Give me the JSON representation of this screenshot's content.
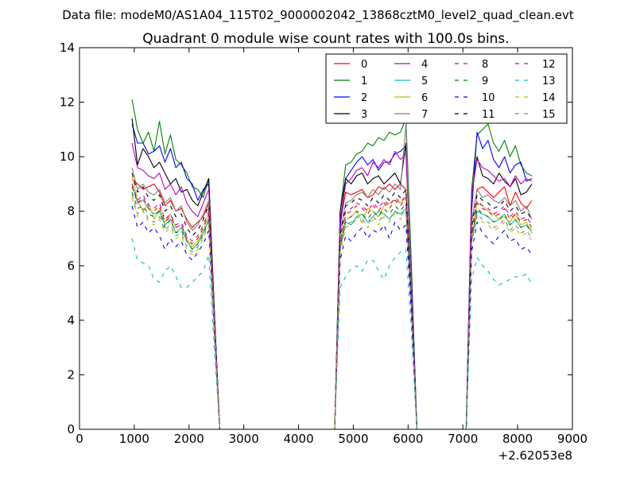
{
  "page": {
    "suptitle": "Data file: modeM0/AS1A04_115T02_9000002042_13868cztM0_level2_quad_clean.evt"
  },
  "chart_data": {
    "type": "line",
    "title": "Quadrant 0 module wise count rates with 100.0s bins.",
    "xlabel": "",
    "ylabel": "",
    "x_offset_label": "+2.62053e8",
    "xlim": [
      0,
      9000
    ],
    "ylim": [
      0,
      14
    ],
    "xticks": [
      0,
      1000,
      2000,
      3000,
      4000,
      5000,
      6000,
      7000,
      8000,
      9000
    ],
    "xtick_labels": [
      "0",
      "1000",
      "2000",
      "3000",
      "4000",
      "5000",
      "6000",
      "7000",
      "8000",
      "9000"
    ],
    "yticks": [
      0,
      2,
      4,
      6,
      8,
      10,
      12,
      14
    ],
    "ytick_labels": [
      "0",
      "2",
      "4",
      "6",
      "8",
      "10",
      "12",
      "14"
    ],
    "grid": false,
    "legend": {
      "placement": "top-right",
      "ncol": 4
    },
    "x": [
      960,
      1060,
      1160,
      1260,
      1360,
      1460,
      1560,
      1660,
      1760,
      1860,
      1960,
      2060,
      2160,
      2260,
      2360,
      2460,
      2560,
      2660,
      4560,
      4660,
      4760,
      4860,
      4960,
      5060,
      5160,
      5260,
      5360,
      5460,
      5560,
      5660,
      5760,
      5860,
      5960,
      6060,
      6160,
      6260,
      7060,
      7160,
      7260,
      7360,
      7460,
      7560,
      7660,
      7760,
      7860,
      7960,
      8060,
      8160,
      8260
    ],
    "series": [
      {
        "name": "0",
        "color": "#ff0000",
        "dash": "solid",
        "values": [
          9.2,
          9.0,
          8.8,
          8.9,
          9.0,
          8.7,
          8.2,
          8.4,
          8.0,
          8.1,
          7.7,
          7.4,
          7.6,
          7.8,
          8.3,
          4.2,
          0,
          0,
          0,
          0,
          7.6,
          8.7,
          8.6,
          8.7,
          8.8,
          8.5,
          8.6,
          8.9,
          8.8,
          9.0,
          8.8,
          9.0,
          8.8,
          5.0,
          0,
          0,
          0,
          7.6,
          8.8,
          8.9,
          8.7,
          8.5,
          8.7,
          8.9,
          8.2,
          8.7,
          8.3,
          8.1,
          8.4
        ]
      },
      {
        "name": "1",
        "color": "#008000",
        "dash": "solid",
        "values": [
          12.1,
          11.0,
          10.5,
          10.9,
          10.2,
          11.3,
          10.1,
          10.8,
          9.9,
          9.7,
          9.4,
          8.9,
          8.8,
          8.5,
          9.2,
          4.4,
          0,
          0,
          0,
          0,
          8.0,
          9.7,
          9.8,
          10.1,
          10.2,
          10.5,
          10.4,
          10.7,
          10.6,
          10.9,
          10.8,
          10.9,
          11.4,
          6.0,
          0,
          0,
          0,
          8.8,
          10.8,
          11.0,
          11.2,
          10.5,
          10.2,
          10.6,
          10.0,
          10.4,
          9.7,
          9.4,
          9.3
        ]
      },
      {
        "name": "2",
        "color": "#0000ff",
        "dash": "solid",
        "values": [
          11.2,
          10.5,
          10.5,
          10.1,
          10.2,
          10.4,
          9.8,
          10.3,
          9.6,
          9.8,
          9.2,
          9.0,
          8.4,
          8.8,
          9.0,
          4.4,
          0,
          0,
          0,
          0,
          7.4,
          9.2,
          9.5,
          9.8,
          10.0,
          9.7,
          9.9,
          9.5,
          9.8,
          9.8,
          10.1,
          10.2,
          10.4,
          5.6,
          0,
          0,
          0,
          8.0,
          10.9,
          10.3,
          10.6,
          9.9,
          9.6,
          10.0,
          9.4,
          9.7,
          9.8,
          9.1,
          9.2
        ]
      },
      {
        "name": "3",
        "color": "#000000",
        "dash": "solid",
        "values": [
          11.4,
          9.7,
          10.3,
          10.0,
          9.6,
          9.8,
          9.4,
          9.0,
          9.2,
          8.7,
          8.8,
          8.4,
          8.2,
          8.7,
          9.2,
          4.4,
          0,
          0,
          0,
          0,
          8.0,
          9.2,
          9.0,
          9.3,
          9.4,
          9.0,
          9.2,
          9.3,
          9.0,
          9.2,
          9.4,
          9.0,
          10.5,
          5.0,
          0,
          0,
          0,
          8.6,
          10.0,
          9.3,
          9.2,
          9.0,
          9.4,
          9.1,
          8.9,
          9.2,
          8.6,
          8.7,
          9.0
        ]
      },
      {
        "name": "4",
        "color": "#bf00bf",
        "dash": "solid",
        "values": [
          10.5,
          9.6,
          9.5,
          9.3,
          9.2,
          9.4,
          8.8,
          9.0,
          8.6,
          8.9,
          8.3,
          8.0,
          7.8,
          8.3,
          8.8,
          4.2,
          0,
          0,
          0,
          0,
          7.7,
          9.0,
          9.2,
          9.5,
          9.6,
          9.3,
          9.8,
          9.6,
          9.9,
          9.7,
          10.2,
          9.9,
          10.1,
          5.3,
          0,
          0,
          0,
          8.6,
          9.9,
          9.6,
          9.5,
          9.3,
          9.1,
          9.2,
          8.9,
          9.3,
          9.0,
          9.2,
          9.1
        ]
      },
      {
        "name": "5",
        "color": "#00bfbf",
        "dash": "solid",
        "values": [
          9.0,
          8.3,
          8.4,
          8.1,
          7.9,
          8.0,
          7.5,
          7.7,
          7.2,
          7.4,
          6.9,
          6.6,
          6.8,
          7.2,
          7.7,
          3.8,
          0,
          0,
          0,
          0,
          6.6,
          7.6,
          7.5,
          7.8,
          7.9,
          7.6,
          7.8,
          8.0,
          7.9,
          7.7,
          8.0,
          7.9,
          8.1,
          4.4,
          0,
          0,
          0,
          6.9,
          8.0,
          7.9,
          7.8,
          7.6,
          7.7,
          7.9,
          7.5,
          7.7,
          7.4,
          7.5,
          7.3
        ]
      },
      {
        "name": "6",
        "color": "#bfbf00",
        "dash": "solid",
        "values": [
          9.3,
          8.4,
          8.0,
          8.3,
          7.7,
          8.1,
          7.6,
          7.9,
          7.4,
          7.5,
          7.0,
          6.7,
          6.9,
          7.3,
          7.9,
          3.9,
          0,
          0,
          0,
          0,
          6.8,
          7.7,
          7.8,
          8.0,
          7.6,
          8.1,
          8.0,
          7.8,
          8.2,
          8.3,
          8.4,
          8.3,
          8.5,
          4.6,
          0,
          0,
          0,
          7.0,
          8.3,
          8.2,
          8.0,
          7.9,
          7.7,
          7.8,
          7.6,
          7.9,
          7.5,
          7.6,
          7.2
        ]
      },
      {
        "name": "7",
        "color": "#808080",
        "dash": "solid",
        "values": [
          9.6,
          8.8,
          9.0,
          8.7,
          8.6,
          8.8,
          8.3,
          8.5,
          8.0,
          8.2,
          7.6,
          7.3,
          7.5,
          7.9,
          8.4,
          4.1,
          0,
          0,
          0,
          0,
          7.2,
          8.3,
          8.4,
          8.6,
          8.7,
          8.5,
          8.8,
          8.6,
          8.9,
          8.7,
          9.0,
          8.8,
          11.2,
          5.0,
          0,
          0,
          0,
          7.6,
          8.8,
          8.5,
          8.6,
          8.4,
          8.3,
          8.5,
          8.2,
          8.4,
          8.0,
          8.2,
          7.7
        ]
      },
      {
        "name": "8",
        "color": "#ff0000",
        "dash": "dashed",
        "values": [
          8.9,
          8.3,
          8.5,
          8.1,
          8.0,
          8.2,
          7.6,
          7.8,
          7.4,
          7.5,
          7.0,
          6.8,
          7.0,
          7.4,
          7.9,
          3.9,
          0,
          0,
          0,
          0,
          6.9,
          7.9,
          8.0,
          8.2,
          8.1,
          7.9,
          8.2,
          8.0,
          8.3,
          8.1,
          8.4,
          8.2,
          8.5,
          4.6,
          0,
          0,
          0,
          7.2,
          8.3,
          8.1,
          8.0,
          7.8,
          7.9,
          8.1,
          7.7,
          7.9,
          7.6,
          7.7,
          7.4
        ]
      },
      {
        "name": "9",
        "color": "#008000",
        "dash": "dashed",
        "values": [
          8.7,
          8.1,
          8.2,
          7.9,
          7.8,
          8.0,
          7.4,
          7.7,
          7.2,
          7.3,
          6.9,
          6.6,
          6.8,
          7.2,
          7.7,
          3.8,
          0,
          0,
          0,
          0,
          6.7,
          7.7,
          7.8,
          8.0,
          7.9,
          7.7,
          8.0,
          7.8,
          8.1,
          7.9,
          8.2,
          8.0,
          8.3,
          4.5,
          0,
          0,
          0,
          7.0,
          8.1,
          7.9,
          7.8,
          7.6,
          7.7,
          7.9,
          7.5,
          7.7,
          7.4,
          7.5,
          7.2
        ]
      },
      {
        "name": "10",
        "color": "#0000ff",
        "dash": "dashed",
        "values": [
          8.2,
          7.4,
          7.6,
          7.2,
          7.4,
          7.1,
          6.6,
          7.0,
          6.7,
          6.9,
          6.4,
          6.2,
          6.5,
          6.8,
          7.3,
          3.6,
          0,
          0,
          0,
          0,
          6.2,
          7.1,
          6.9,
          7.2,
          7.4,
          7.0,
          7.3,
          7.2,
          7.5,
          7.0,
          7.6,
          7.3,
          7.5,
          4.2,
          0,
          0,
          0,
          6.5,
          7.6,
          7.2,
          7.0,
          6.8,
          7.1,
          7.3,
          6.9,
          7.0,
          6.6,
          6.7,
          6.4
        ]
      },
      {
        "name": "11",
        "color": "#000000",
        "dash": "dashed",
        "values": [
          9.4,
          8.7,
          8.9,
          8.5,
          8.4,
          8.6,
          8.0,
          8.2,
          7.8,
          7.9,
          7.4,
          7.1,
          7.3,
          7.7,
          8.2,
          4.0,
          0,
          0,
          0,
          0,
          7.1,
          8.2,
          8.3,
          8.5,
          8.4,
          8.2,
          8.5,
          8.3,
          8.6,
          8.4,
          8.7,
          8.5,
          8.8,
          4.8,
          0,
          0,
          0,
          7.4,
          8.6,
          8.4,
          8.3,
          8.1,
          8.2,
          8.4,
          8.0,
          8.2,
          7.9,
          8.0,
          7.7
        ]
      },
      {
        "name": "12",
        "color": "#bf00bf",
        "dash": "dashed",
        "values": [
          9.0,
          8.4,
          8.6,
          8.2,
          8.1,
          8.3,
          7.7,
          7.9,
          7.5,
          7.6,
          7.1,
          6.9,
          7.1,
          7.5,
          8.0,
          3.9,
          0,
          0,
          0,
          0,
          7.0,
          8.0,
          8.1,
          8.3,
          8.2,
          8.0,
          8.3,
          8.1,
          8.4,
          8.2,
          8.5,
          8.3,
          8.6,
          4.7,
          0,
          0,
          0,
          7.3,
          8.4,
          8.2,
          8.1,
          7.9,
          8.0,
          8.2,
          7.8,
          8.0,
          7.7,
          7.8,
          7.5
        ]
      },
      {
        "name": "13",
        "color": "#00bfbf",
        "dash": "dashed",
        "values": [
          7.0,
          6.2,
          6.1,
          6.0,
          5.5,
          5.4,
          5.8,
          6.0,
          5.6,
          5.2,
          5.2,
          5.4,
          5.6,
          5.8,
          6.4,
          3.0,
          0,
          0,
          0,
          0,
          5.2,
          5.6,
          5.9,
          6.0,
          5.8,
          6.2,
          6.2,
          5.8,
          5.5,
          6.0,
          6.3,
          6.5,
          6.6,
          3.6,
          0,
          0,
          0,
          5.5,
          6.3,
          6.0,
          5.8,
          5.5,
          5.3,
          5.4,
          5.5,
          5.6,
          5.6,
          5.7,
          5.3
        ]
      },
      {
        "name": "14",
        "color": "#bfbf00",
        "dash": "dashed",
        "values": [
          8.5,
          7.8,
          8.0,
          7.6,
          7.5,
          7.7,
          7.2,
          7.4,
          7.0,
          7.1,
          6.6,
          6.4,
          6.6,
          7.0,
          7.5,
          3.7,
          0,
          0,
          0,
          0,
          6.5,
          7.4,
          7.5,
          7.7,
          7.6,
          7.4,
          7.7,
          7.5,
          7.8,
          7.6,
          7.9,
          7.7,
          8.0,
          4.4,
          0,
          0,
          0,
          6.8,
          7.8,
          7.6,
          7.5,
          7.3,
          7.4,
          7.6,
          7.2,
          7.4,
          7.1,
          7.2,
          6.9
        ]
      },
      {
        "name": "15",
        "color": "#808080",
        "dash": "dashed",
        "values": [
          8.6,
          7.9,
          8.1,
          7.7,
          7.6,
          7.8,
          7.3,
          7.5,
          7.1,
          7.2,
          6.7,
          6.5,
          6.7,
          7.1,
          7.6,
          3.7,
          0,
          0,
          0,
          0,
          6.6,
          7.5,
          7.6,
          7.8,
          7.7,
          7.5,
          7.8,
          7.6,
          7.9,
          7.7,
          8.0,
          7.8,
          8.1,
          4.4,
          0,
          0,
          0,
          6.9,
          7.9,
          7.7,
          7.6,
          7.4,
          7.5,
          7.7,
          7.3,
          7.5,
          7.2,
          7.3,
          7.0
        ]
      }
    ]
  }
}
